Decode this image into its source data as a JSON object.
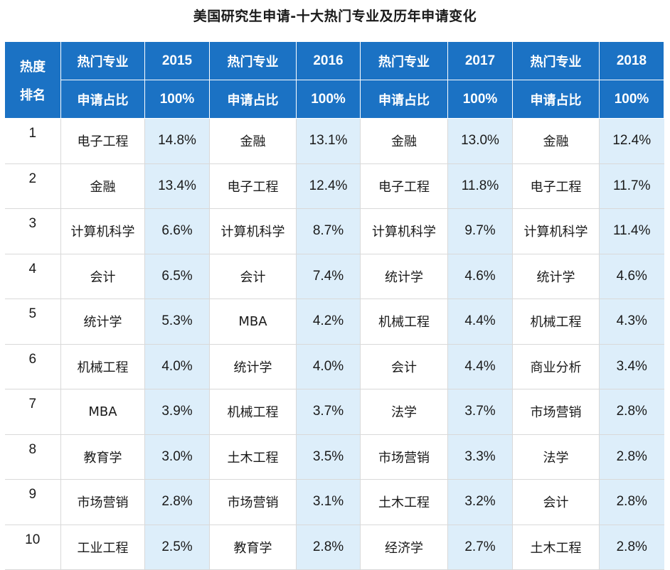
{
  "title": "美国研究生申请-十大热门专业及历年申请变化",
  "header": {
    "rank_label_1": "热度",
    "rank_label_2": "排名",
    "major_label": "热门专业",
    "ratio_label": "申请占比",
    "years": [
      "2015",
      "2016",
      "2017",
      "2018"
    ],
    "totals": [
      "100%",
      "100%",
      "100%",
      "100%"
    ]
  },
  "rows": [
    {
      "rank": "1",
      "cells": [
        [
          "电子工程",
          "14.8%"
        ],
        [
          "金融",
          "13.1%"
        ],
        [
          "金融",
          "13.0%"
        ],
        [
          "金融",
          "12.4%"
        ]
      ]
    },
    {
      "rank": "2",
      "cells": [
        [
          "金融",
          "13.4%"
        ],
        [
          "电子工程",
          "12.4%"
        ],
        [
          "电子工程",
          "11.8%"
        ],
        [
          "电子工程",
          "11.7%"
        ]
      ]
    },
    {
      "rank": "3",
      "cells": [
        [
          "计算机科学",
          "6.6%"
        ],
        [
          "计算机科学",
          "8.7%"
        ],
        [
          "计算机科学",
          "9.7%"
        ],
        [
          "计算机科学",
          "11.4%"
        ]
      ]
    },
    {
      "rank": "4",
      "cells": [
        [
          "会计",
          "6.5%"
        ],
        [
          "会计",
          "7.4%"
        ],
        [
          "统计学",
          "4.6%"
        ],
        [
          "统计学",
          "4.6%"
        ]
      ]
    },
    {
      "rank": "5",
      "cells": [
        [
          "统计学",
          "5.3%"
        ],
        [
          "MBA",
          "4.2%"
        ],
        [
          "机械工程",
          "4.4%"
        ],
        [
          "机械工程",
          "4.3%"
        ]
      ]
    },
    {
      "rank": "6",
      "cells": [
        [
          "机械工程",
          "4.0%"
        ],
        [
          "统计学",
          "4.0%"
        ],
        [
          "会计",
          "4.4%"
        ],
        [
          "商业分析",
          "3.4%"
        ]
      ]
    },
    {
      "rank": "7",
      "cells": [
        [
          "MBA",
          "3.9%"
        ],
        [
          "机械工程",
          "3.7%"
        ],
        [
          "法学",
          "3.7%"
        ],
        [
          "市场营销",
          "2.8%"
        ]
      ]
    },
    {
      "rank": "8",
      "cells": [
        [
          "教育学",
          "3.0%"
        ],
        [
          "土木工程",
          "3.5%"
        ],
        [
          "市场营销",
          "3.3%"
        ],
        [
          "法学",
          "2.8%"
        ]
      ]
    },
    {
      "rank": "9",
      "cells": [
        [
          "市场营销",
          "2.8%"
        ],
        [
          "市场营销",
          "3.1%"
        ],
        [
          "土木工程",
          "3.2%"
        ],
        [
          "会计",
          "2.8%"
        ]
      ]
    },
    {
      "rank": "10",
      "cells": [
        [
          "工业工程",
          "2.5%"
        ],
        [
          "教育学",
          "2.8%"
        ],
        [
          "经济学",
          "2.7%"
        ],
        [
          "土木工程",
          "2.8%"
        ]
      ]
    }
  ]
}
